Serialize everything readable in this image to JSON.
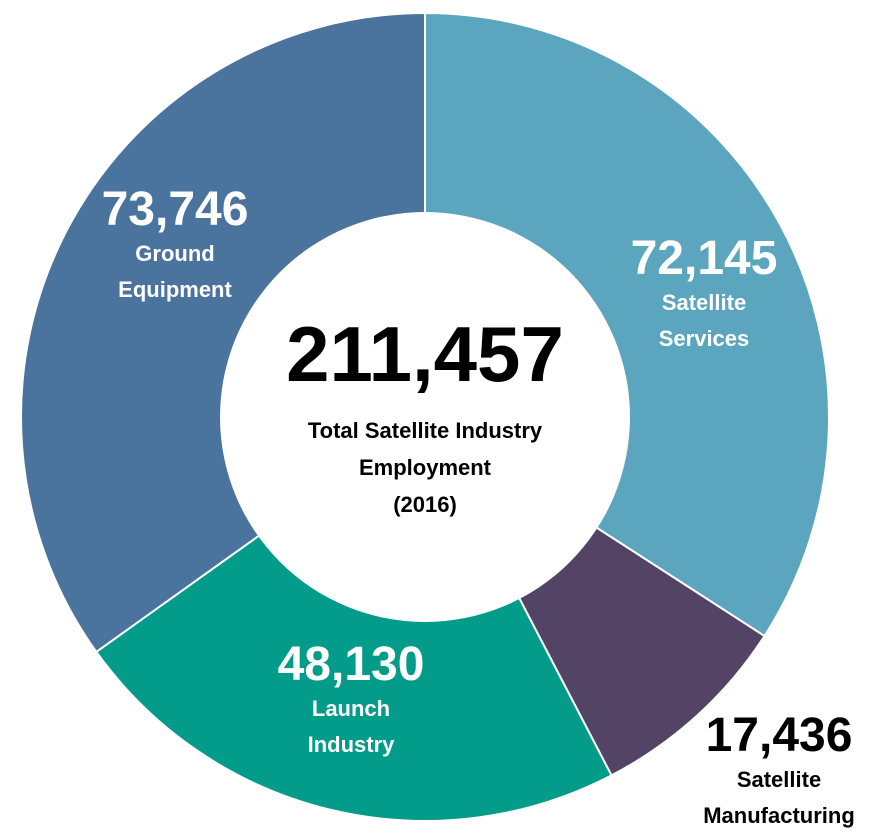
{
  "chart_data": {
    "type": "pie",
    "title": "",
    "categories": [
      "Satellite Services",
      "Satellite Manufacturing",
      "Launch Industry",
      "Ground Equipment"
    ],
    "values": [
      72145,
      17436,
      48130,
      73746
    ],
    "value_labels": [
      "72,145",
      "17,436",
      "48,130",
      "73,746"
    ],
    "label_lines": [
      [
        "Satellite",
        "Services"
      ],
      [
        "Satellite",
        "Manufacturing"
      ],
      [
        "Launch",
        "Industry"
      ],
      [
        "Ground",
        "Equipment"
      ]
    ],
    "colors": [
      "#5ba5be",
      "#534466",
      "#039b8a",
      "#4a739e"
    ],
    "label_colors": [
      "#ffffff",
      "#000000",
      "#ffffff",
      "#ffffff"
    ],
    "donut": true,
    "center": {
      "total": "211,457",
      "caption_lines": [
        "Total Satellite Industry",
        "Employment",
        "(2016)"
      ]
    }
  }
}
